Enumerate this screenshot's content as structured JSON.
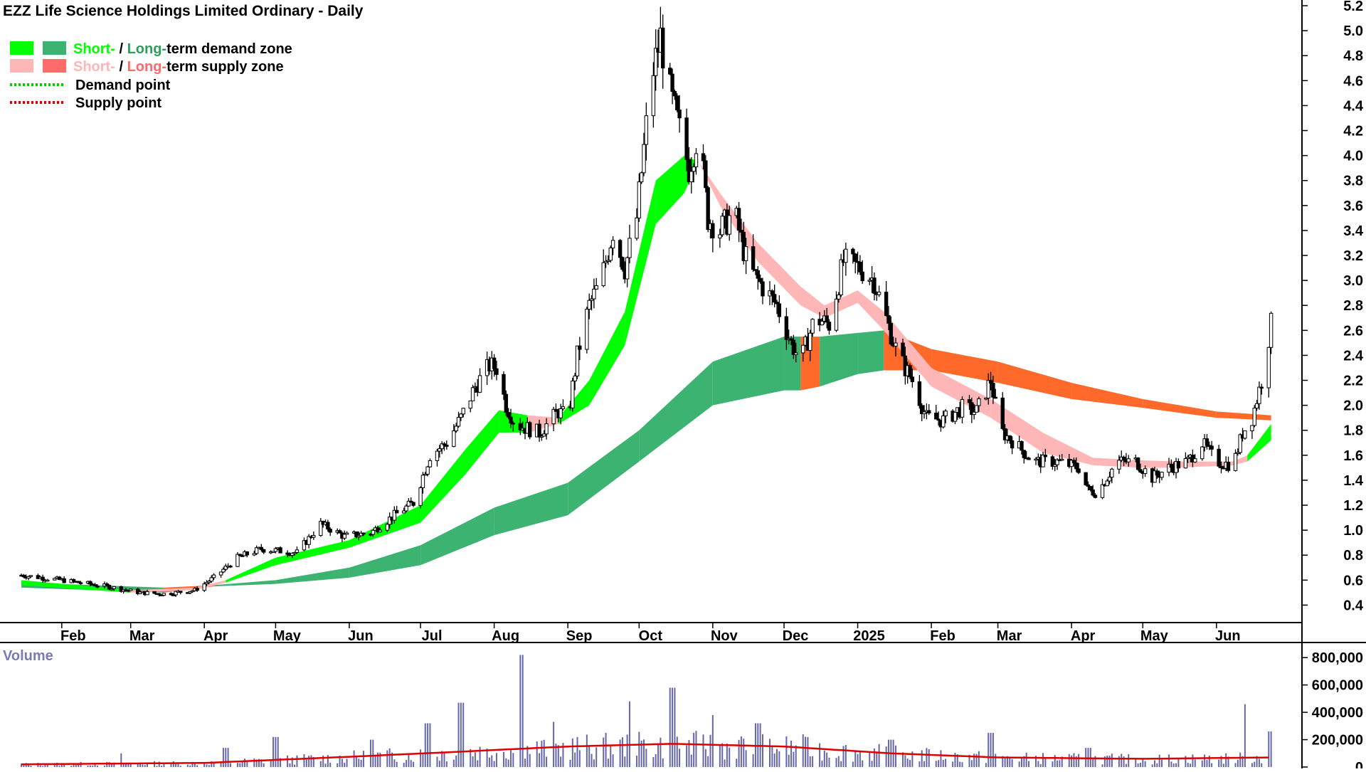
{
  "title": "EZZ Life Science Holdings Limited Ordinary - Daily",
  "colors": {
    "short_demand": "#00ff00",
    "long_demand": "#3cb371",
    "short_supply": "#ffb6b6",
    "long_supply": "#ff6a2a",
    "demand_point": "#00cc00",
    "supply_point": "#dd0000",
    "candle": "#000000",
    "volume_bar": "#6666aa",
    "volume_avg": "#dd0000"
  },
  "legend": [
    {
      "prefix": "Short-",
      "sep": " / ",
      "mid": "Long-",
      "suffix": "term demand zone",
      "prefix_color": "#00ff00",
      "mid_color": "#2e9e5e",
      "swatch_a": "#00ff00",
      "swatch_b": "#3cb371"
    },
    {
      "prefix": "Short-",
      "sep": " / ",
      "mid": "Long-",
      "suffix": "term supply zone",
      "prefix_color": "#ffb6b6",
      "mid_color": "#ff6a6a",
      "swatch_a": "#ffb6b6",
      "swatch_b": "#ff6a6a"
    },
    {
      "label": "Demand point",
      "line_color": "#00cc00"
    },
    {
      "label": "Supply point",
      "line_color": "#dd0000"
    }
  ],
  "volume_label": "Volume",
  "chart_data": [
    {
      "type": "candlestick",
      "title": "EZZ Life Science Holdings Limited Ordinary - Daily",
      "ylim": [
        0.3,
        5.2
      ],
      "y_ticks": [
        "0.4",
        "0.6",
        "0.8",
        "1.0",
        "1.2",
        "1.4",
        "1.6",
        "1.8",
        "2.0",
        "2.2",
        "2.4",
        "2.6",
        "2.8",
        "3.0",
        "3.2",
        "3.4",
        "3.6",
        "3.8",
        "4.0",
        "4.2",
        "4.4",
        "4.6",
        "4.8",
        "5.0",
        "5.2"
      ],
      "x_ticks": [
        "Feb",
        "Mar",
        "Apr",
        "May",
        "Jun",
        "Jul",
        "Aug",
        "Sep",
        "Oct",
        "Nov",
        "Dec",
        "2025",
        "Feb",
        "Mar",
        "Apr",
        "May",
        "Jun"
      ],
      "price_path": [
        [
          "2024-01-15",
          0.64
        ],
        [
          "2024-02-01",
          0.6
        ],
        [
          "2024-02-20",
          0.55
        ],
        [
          "2024-03-05",
          0.5
        ],
        [
          "2024-03-15",
          0.49
        ],
        [
          "2024-03-28",
          0.52
        ],
        [
          "2024-04-05",
          0.62
        ],
        [
          "2024-04-15",
          0.78
        ],
        [
          "2024-04-25",
          0.85
        ],
        [
          "2024-05-10",
          0.82
        ],
        [
          "2024-05-20",
          1.05
        ],
        [
          "2024-05-30",
          0.95
        ],
        [
          "2024-06-10",
          0.98
        ],
        [
          "2024-06-20",
          1.12
        ],
        [
          "2024-06-28",
          1.22
        ],
        [
          "2024-07-05",
          1.6
        ],
        [
          "2024-07-12",
          1.7
        ],
        [
          "2024-07-18",
          1.9
        ],
        [
          "2024-07-24",
          2.15
        ],
        [
          "2024-07-30",
          2.32
        ],
        [
          "2024-08-02",
          2.3
        ],
        [
          "2024-08-06",
          2.0
        ],
        [
          "2024-08-10",
          1.85
        ],
        [
          "2024-08-20",
          1.78
        ],
        [
          "2024-08-28",
          1.95
        ],
        [
          "2024-09-01",
          1.9
        ],
        [
          "2024-09-05",
          2.4
        ],
        [
          "2024-09-10",
          2.8
        ],
        [
          "2024-09-15",
          3.0
        ],
        [
          "2024-09-20",
          3.4
        ],
        [
          "2024-09-25",
          3.1
        ],
        [
          "2024-09-30",
          3.5
        ],
        [
          "2024-10-03",
          4.05
        ],
        [
          "2024-10-06",
          4.6
        ],
        [
          "2024-10-10",
          4.95
        ],
        [
          "2024-10-14",
          4.5
        ],
        [
          "2024-10-18",
          4.2
        ],
        [
          "2024-10-22",
          3.9
        ],
        [
          "2024-10-26",
          4.2
        ],
        [
          "2024-10-30",
          3.5
        ],
        [
          "2024-11-04",
          3.4
        ],
        [
          "2024-11-10",
          3.55
        ],
        [
          "2024-11-16",
          3.1
        ],
        [
          "2024-11-22",
          2.95
        ],
        [
          "2024-11-28",
          2.8
        ],
        [
          "2024-12-04",
          2.5
        ],
        [
          "2024-12-08",
          2.35
        ],
        [
          "2024-12-14",
          2.7
        ],
        [
          "2024-12-20",
          2.65
        ],
        [
          "2024-12-26",
          3.15
        ],
        [
          "2025-01-02",
          3.1
        ],
        [
          "2025-01-08",
          3.0
        ],
        [
          "2025-01-12",
          2.75
        ],
        [
          "2025-01-18",
          2.4
        ],
        [
          "2025-01-24",
          2.2
        ],
        [
          "2025-01-30",
          1.9
        ],
        [
          "2025-02-06",
          1.88
        ],
        [
          "2025-02-14",
          1.98
        ],
        [
          "2025-02-20",
          1.95
        ],
        [
          "2025-02-26",
          2.2
        ],
        [
          "2025-03-02",
          1.8
        ],
        [
          "2025-03-08",
          1.7
        ],
        [
          "2025-03-16",
          1.55
        ],
        [
          "2025-03-26",
          1.55
        ],
        [
          "2025-04-04",
          1.5
        ],
        [
          "2025-04-08",
          1.32
        ],
        [
          "2025-04-12",
          1.3
        ],
        [
          "2025-04-20",
          1.55
        ],
        [
          "2025-04-28",
          1.55
        ],
        [
          "2025-05-05",
          1.42
        ],
        [
          "2025-05-12",
          1.5
        ],
        [
          "2025-05-20",
          1.55
        ],
        [
          "2025-05-26",
          1.7
        ],
        [
          "2025-06-01",
          1.55
        ],
        [
          "2025-06-08",
          1.52
        ],
        [
          "2025-06-12",
          1.78
        ],
        [
          "2025-06-16",
          1.9
        ],
        [
          "2025-06-20",
          2.2
        ],
        [
          "2025-06-24",
          2.65
        ]
      ],
      "short_term_zone": [
        [
          "2024-01-15",
          0.6,
          0.56,
          "demand"
        ],
        [
          "2024-03-01",
          0.52,
          0.5,
          "supply"
        ],
        [
          "2024-03-28",
          0.54,
          0.52,
          "supply"
        ],
        [
          "2024-04-10",
          0.6,
          0.58,
          "demand"
        ],
        [
          "2024-05-01",
          0.78,
          0.72,
          "demand"
        ],
        [
          "2024-06-01",
          0.92,
          0.86,
          "demand"
        ],
        [
          "2024-07-01",
          1.2,
          1.06,
          "demand"
        ],
        [
          "2024-07-20",
          1.65,
          1.45,
          "demand"
        ],
        [
          "2024-08-03",
          1.96,
          1.78,
          "demand"
        ],
        [
          "2024-08-15",
          1.92,
          1.78,
          "supply"
        ],
        [
          "2024-08-28",
          1.9,
          1.85,
          "demand"
        ],
        [
          "2024-09-10",
          2.2,
          2.0,
          "demand"
        ],
        [
          "2024-09-25",
          2.75,
          2.48,
          "demand"
        ],
        [
          "2024-10-08",
          3.8,
          3.45,
          "demand"
        ],
        [
          "2024-10-20",
          4.0,
          3.7,
          "demand"
        ],
        [
          "2024-10-26",
          3.95,
          3.95,
          "supply"
        ],
        [
          "2024-11-04",
          3.7,
          3.6,
          "supply"
        ],
        [
          "2024-11-20",
          3.3,
          3.15,
          "supply"
        ],
        [
          "2024-12-08",
          2.95,
          2.8,
          "supply"
        ],
        [
          "2024-12-18",
          2.8,
          2.7,
          "supply"
        ],
        [
          "2025-01-01",
          2.92,
          2.82,
          "supply"
        ],
        [
          "2025-01-12",
          2.75,
          2.6,
          "supply"
        ],
        [
          "2025-02-01",
          2.3,
          2.15,
          "supply"
        ],
        [
          "2025-02-26",
          2.05,
          1.9,
          "supply"
        ],
        [
          "2025-03-20",
          1.78,
          1.62,
          "supply"
        ],
        [
          "2025-04-10",
          1.58,
          1.52,
          "supply"
        ],
        [
          "2025-04-30",
          1.56,
          1.5,
          "supply"
        ],
        [
          "2025-05-15",
          1.55,
          1.5,
          "supply"
        ],
        [
          "2025-06-08",
          1.55,
          1.52,
          "supply"
        ],
        [
          "2025-06-14",
          1.6,
          1.55,
          "demand"
        ],
        [
          "2025-06-24",
          1.85,
          1.72,
          "demand"
        ]
      ],
      "long_term_zone": [
        [
          "2024-01-15",
          0.58,
          0.54,
          "demand"
        ],
        [
          "2024-03-15",
          0.54,
          0.5,
          "supply"
        ],
        [
          "2024-04-05",
          0.56,
          0.55,
          "demand"
        ],
        [
          "2024-05-01",
          0.6,
          0.57,
          "demand"
        ],
        [
          "2024-06-01",
          0.7,
          0.62,
          "demand"
        ],
        [
          "2024-07-01",
          0.88,
          0.72,
          "demand"
        ],
        [
          "2024-08-01",
          1.18,
          0.96,
          "demand"
        ],
        [
          "2024-09-01",
          1.38,
          1.12,
          "demand"
        ],
        [
          "2024-10-01",
          1.8,
          1.55,
          "demand"
        ],
        [
          "2024-11-01",
          2.35,
          2.0,
          "demand"
        ],
        [
          "2024-12-01",
          2.55,
          2.12,
          "demand"
        ],
        [
          "2024-12-08",
          2.55,
          2.12,
          "supply"
        ],
        [
          "2024-12-16",
          2.55,
          2.15,
          "demand"
        ],
        [
          "2025-01-01",
          2.58,
          2.25,
          "demand"
        ],
        [
          "2025-01-12",
          2.6,
          2.28,
          "supply"
        ],
        [
          "2025-02-01",
          2.45,
          2.28,
          "supply"
        ],
        [
          "2025-03-01",
          2.35,
          2.18,
          "supply"
        ],
        [
          "2025-04-01",
          2.18,
          2.05,
          "supply"
        ],
        [
          "2025-05-01",
          2.05,
          1.98,
          "supply"
        ],
        [
          "2025-06-01",
          1.95,
          1.9,
          "supply"
        ],
        [
          "2025-06-24",
          1.92,
          1.88,
          "supply"
        ]
      ]
    },
    {
      "type": "bar",
      "title": "Volume",
      "ylim": [
        0,
        900000
      ],
      "y_ticks": [
        "0",
        "200,000",
        "400,000",
        "600,000",
        "800,000"
      ],
      "volume_peaks": [
        [
          "2024-02-25",
          100000
        ],
        [
          "2024-04-10",
          140000
        ],
        [
          "2024-05-01",
          220000
        ],
        [
          "2024-06-10",
          200000
        ],
        [
          "2024-07-04",
          320000
        ],
        [
          "2024-07-18",
          470000
        ],
        [
          "2024-08-12",
          820000
        ],
        [
          "2024-08-25",
          330000
        ],
        [
          "2024-09-28",
          480000
        ],
        [
          "2024-10-15",
          580000
        ],
        [
          "2024-11-02",
          380000
        ],
        [
          "2024-11-20",
          320000
        ],
        [
          "2024-12-08",
          240000
        ],
        [
          "2025-01-15",
          200000
        ],
        [
          "2025-02-26",
          250000
        ],
        [
          "2025-04-08",
          140000
        ],
        [
          "2025-06-14",
          460000
        ],
        [
          "2025-06-24",
          260000
        ]
      ],
      "moving_average_path": [
        [
          "2024-01-15",
          20000
        ],
        [
          "2024-04-01",
          30000
        ],
        [
          "2024-06-01",
          75000
        ],
        [
          "2024-07-15",
          110000
        ],
        [
          "2024-09-01",
          150000
        ],
        [
          "2024-10-15",
          170000
        ],
        [
          "2024-12-01",
          150000
        ],
        [
          "2025-01-15",
          100000
        ],
        [
          "2025-03-01",
          70000
        ],
        [
          "2025-05-01",
          60000
        ],
        [
          "2025-06-24",
          70000
        ]
      ]
    }
  ]
}
